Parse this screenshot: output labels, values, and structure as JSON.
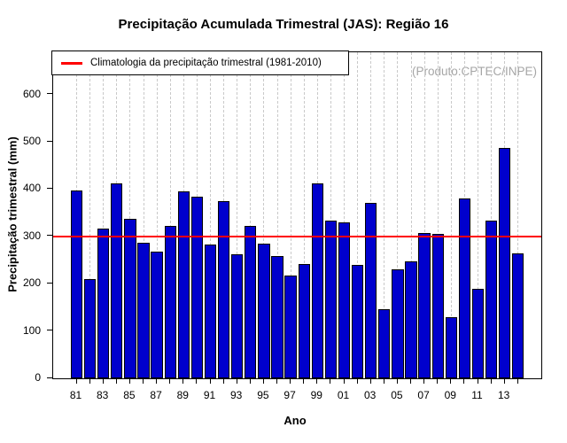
{
  "title": "Precipitação Acumulada Trimestral (JAS): Região 16",
  "watermark": "(Produto:CPTEC/INPE)",
  "legend": {
    "label": "Climatologia da precipitação trimestral (1981-2010)"
  },
  "axes": {
    "xlabel": "Ano",
    "ylabel": "Precipitação trimestral (mm)"
  },
  "chart_data": {
    "type": "bar",
    "title": "Precipitação Acumulada Trimestral (JAS): Região 16",
    "xlabel": "Ano",
    "ylabel": "Precipitação trimestral (mm)",
    "ylim": [
      0,
      689
    ],
    "yticks": [
      0,
      100,
      200,
      300,
      400,
      500,
      600
    ],
    "grid": "vertical-dashed",
    "legend_position": "top-left",
    "years": [
      1981,
      1982,
      1983,
      1984,
      1985,
      1986,
      1987,
      1988,
      1989,
      1990,
      1991,
      1992,
      1993,
      1994,
      1995,
      1996,
      1997,
      1998,
      1999,
      2000,
      2001,
      2002,
      2003,
      2004,
      2005,
      2006,
      2007,
      2008,
      2009,
      2010,
      2011,
      2012,
      2013,
      2014
    ],
    "values": [
      397,
      210,
      316,
      412,
      337,
      286,
      268,
      322,
      395,
      384,
      283,
      375,
      262,
      322,
      285,
      258,
      217,
      242,
      412,
      333,
      329,
      240,
      371,
      146,
      231,
      247,
      307,
      305,
      129,
      380,
      190,
      334,
      487,
      264
    ],
    "x_tick_labels": [
      "81",
      "83",
      "85",
      "87",
      "89",
      "91",
      "93",
      "95",
      "97",
      "99",
      "01",
      "03",
      "05",
      "07",
      "09",
      "11",
      "13"
    ],
    "climatology": {
      "value": 300,
      "label": "Climatologia da precipitação trimestral (1981-2010)"
    },
    "bar_color": "#0000CD",
    "line_color": "#FF0000",
    "grid_color": "#C9C9C9",
    "watermark_color": "#A6A6A6"
  }
}
